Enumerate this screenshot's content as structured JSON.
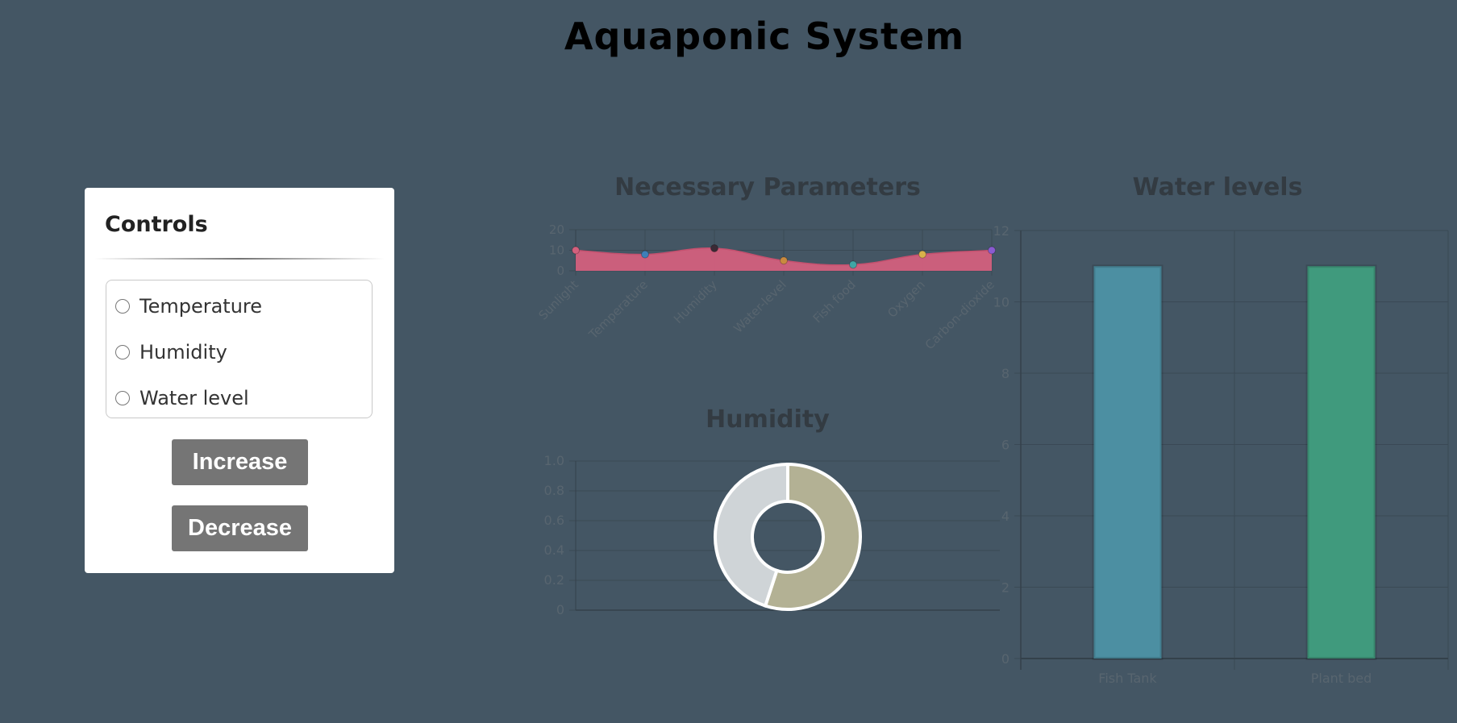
{
  "page": {
    "title": "Aquaponic System"
  },
  "controls": {
    "heading": "Controls",
    "options": [
      {
        "label": "Temperature"
      },
      {
        "label": "Humidity"
      },
      {
        "label": "Water level"
      }
    ],
    "increase_label": "Increase",
    "decrease_label": "Decrease"
  },
  "colors": {
    "background": "#445664",
    "params_fill": "#d3607d",
    "humidity_used": "#b3b194",
    "humidity_free": "#cfd4d7",
    "fish_tank_bar": "#4c8fa2",
    "plant_bed_bar": "#409a7d"
  },
  "chart_data": [
    {
      "type": "area",
      "title": "Necessary Parameters",
      "categories": [
        "Sunlight",
        "Temperature",
        "Humidity",
        "Water-level",
        "Fish food",
        "Oxygen",
        "Carbon-dioxide"
      ],
      "values": [
        10,
        8,
        11,
        5,
        3,
        8,
        10
      ],
      "point_colors": [
        "#d3607d",
        "#3d7fb8",
        "#3a2a35",
        "#c98a3f",
        "#3fa6a5",
        "#d9b24a",
        "#8a5bd0"
      ],
      "ylim": [
        0,
        20
      ],
      "yticks": [
        "0",
        "10",
        "20"
      ],
      "grid": true
    },
    {
      "type": "pie",
      "title": "Humidity",
      "slices": [
        55,
        45
      ],
      "yticks": [
        "0",
        "0.2",
        "0.4",
        "0.6",
        "0.8",
        "1.0"
      ],
      "ylim": [
        0,
        1
      ],
      "grid": true
    },
    {
      "type": "bar",
      "title": "Water levels",
      "categories": [
        "Fish Tank",
        "Plant bed"
      ],
      "values": [
        11,
        11
      ],
      "ylim": [
        0,
        12
      ],
      "yticks": [
        "0",
        "2",
        "4",
        "6",
        "8",
        "10",
        "12"
      ],
      "grid": true
    }
  ]
}
